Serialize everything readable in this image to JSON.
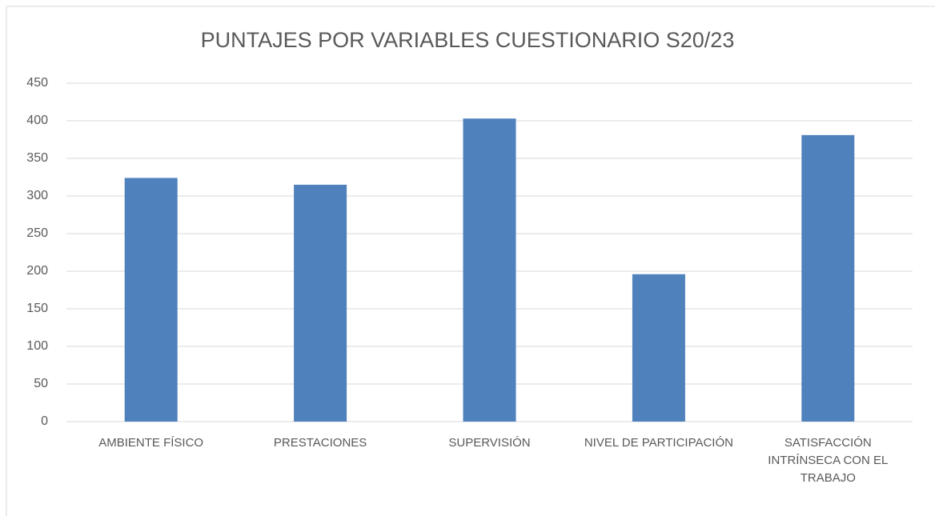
{
  "chart_data": {
    "type": "bar",
    "title": "PUNTAJES POR VARIABLES CUESTIONARIO S20/23",
    "categories": [
      "AMBIENTE FÍSICO",
      "PRESTACIONES",
      "SUPERVISIÓN",
      "NIVEL DE PARTICIPACIÓN",
      "SATISFACCIÓN INTRÍNSECA CON EL TRABAJO"
    ],
    "values": [
      324,
      315,
      403,
      196,
      381
    ],
    "color": "#4f81bd",
    "ylim": [
      0,
      450
    ],
    "yticks": [
      0,
      50,
      100,
      150,
      200,
      250,
      300,
      350,
      400,
      450
    ],
    "grid": true
  }
}
